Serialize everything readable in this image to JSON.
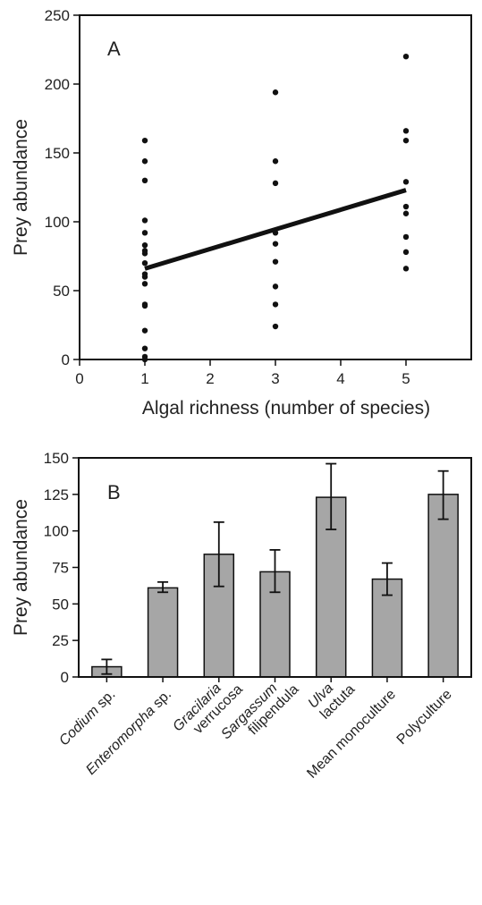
{
  "chart_data": [
    {
      "type": "scatter",
      "panel_label": "A",
      "xlabel": "Algal richness (number of species)",
      "ylabel": "Prey abundance",
      "xlim": [
        0,
        6
      ],
      "ylim": [
        0,
        250
      ],
      "x_ticks": [
        0,
        1,
        2,
        3,
        4,
        5
      ],
      "y_ticks": [
        0,
        50,
        100,
        150,
        200,
        250
      ],
      "grid": false,
      "points": [
        {
          "x": 1,
          "y": 159
        },
        {
          "x": 1,
          "y": 144
        },
        {
          "x": 1,
          "y": 130
        },
        {
          "x": 1,
          "y": 101
        },
        {
          "x": 1,
          "y": 92
        },
        {
          "x": 1,
          "y": 83
        },
        {
          "x": 1,
          "y": 79
        },
        {
          "x": 1,
          "y": 77
        },
        {
          "x": 1,
          "y": 70
        },
        {
          "x": 1,
          "y": 62
        },
        {
          "x": 1,
          "y": 60
        },
        {
          "x": 1,
          "y": 55
        },
        {
          "x": 1,
          "y": 40
        },
        {
          "x": 1,
          "y": 39
        },
        {
          "x": 1,
          "y": 21
        },
        {
          "x": 1,
          "y": 8
        },
        {
          "x": 1,
          "y": 2
        },
        {
          "x": 1,
          "y": 0
        },
        {
          "x": 3,
          "y": 194
        },
        {
          "x": 3,
          "y": 144
        },
        {
          "x": 3,
          "y": 128
        },
        {
          "x": 3,
          "y": 92
        },
        {
          "x": 3,
          "y": 84
        },
        {
          "x": 3,
          "y": 71
        },
        {
          "x": 3,
          "y": 53
        },
        {
          "x": 3,
          "y": 40
        },
        {
          "x": 3,
          "y": 24
        },
        {
          "x": 5,
          "y": 220
        },
        {
          "x": 5,
          "y": 166
        },
        {
          "x": 5,
          "y": 159
        },
        {
          "x": 5,
          "y": 129
        },
        {
          "x": 5,
          "y": 111
        },
        {
          "x": 5,
          "y": 106
        },
        {
          "x": 5,
          "y": 89
        },
        {
          "x": 5,
          "y": 78
        },
        {
          "x": 5,
          "y": 66
        }
      ],
      "regression_line": {
        "x": [
          1,
          5
        ],
        "y": [
          66,
          123
        ]
      }
    },
    {
      "type": "bar",
      "panel_label": "B",
      "xlabel": "",
      "ylabel": "Prey abundance",
      "ylim": [
        0,
        150
      ],
      "y_ticks": [
        0,
        25,
        50,
        75,
        100,
        125,
        150
      ],
      "grid": false,
      "bar_color": "#a6a6a6",
      "categories": [
        {
          "line1": "Codium",
          "line1_suffix": " sp.",
          "line2": ""
        },
        {
          "line1": "Enteromorpha",
          "line1_suffix": " sp.",
          "line2": ""
        },
        {
          "line1": "Gracilaria",
          "line1_suffix": "",
          "line2": "verrucosa"
        },
        {
          "line1": "Sargassum",
          "line1_suffix": "",
          "line2": "filipendula"
        },
        {
          "line1": "Ulva",
          "line1_suffix": "",
          "line2": "lactuta"
        },
        {
          "line1": "",
          "line1_suffix": "Mean monoculture",
          "line2": ""
        },
        {
          "line1": "",
          "line1_suffix": "Polyculture",
          "line2": ""
        }
      ],
      "values": [
        7,
        61,
        84,
        72,
        123,
        67,
        125
      ],
      "error_low": [
        2,
        58,
        62,
        58,
        101,
        56,
        108
      ],
      "error_high": [
        12,
        65,
        106,
        87,
        146,
        78,
        141
      ]
    }
  ]
}
